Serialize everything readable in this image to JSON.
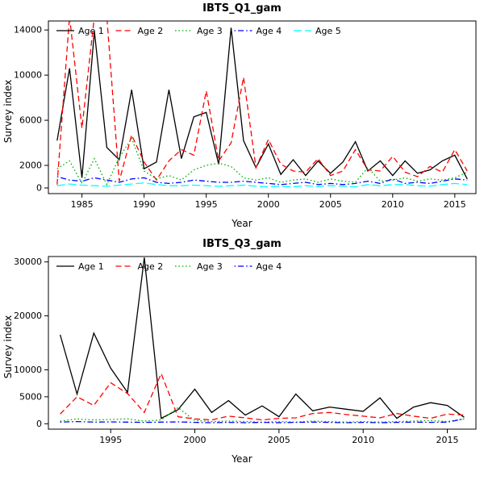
{
  "chart_data": [
    {
      "type": "line",
      "title": "IBTS_Q1_gam",
      "xlabel": "Year",
      "ylabel": "Survey index",
      "grid": false,
      "legend_position": "top-left-horizontal",
      "xlim": [
        1982.3,
        2016.7
      ],
      "ylim": [
        -500,
        14800
      ],
      "xticks": [
        1985,
        1990,
        1995,
        2000,
        2005,
        2010,
        2015
      ],
      "yticks": [
        0,
        2000,
        6000,
        10000,
        14000
      ],
      "x": [
        1983,
        1984,
        1985,
        1986,
        1987,
        1988,
        1989,
        1990,
        1991,
        1992,
        1993,
        1994,
        1995,
        1996,
        1997,
        1998,
        1999,
        2000,
        2001,
        2002,
        2003,
        2004,
        2005,
        2006,
        2007,
        2008,
        2009,
        2010,
        2011,
        2012,
        2013,
        2014,
        2015,
        2016
      ],
      "series": [
        {
          "name": "Age 1",
          "color": "#000000",
          "linestyle": "solid",
          "values": [
            4200,
            10600,
            900,
            13900,
            3600,
            2500,
            8700,
            1700,
            2300,
            8700,
            2600,
            6300,
            6700,
            2100,
            14200,
            4200,
            1800,
            3900,
            1200,
            2500,
            1100,
            2400,
            1300,
            2300,
            4100,
            1500,
            2400,
            1100,
            2400,
            1300,
            1600,
            2400,
            2900,
            800
          ]
        },
        {
          "name": "Age 2",
          "color": "#ff0000",
          "linestyle": "dashed",
          "values": [
            300,
            15200,
            5300,
            15200,
            15200,
            600,
            4700,
            2300,
            700,
            2400,
            3400,
            2900,
            8600,
            2400,
            4000,
            9800,
            1800,
            4300,
            2100,
            1500,
            1400,
            2600,
            1100,
            1500,
            3400,
            1600,
            1500,
            2800,
            1400,
            1000,
            1900,
            1400,
            3400,
            1500
          ]
        },
        {
          "name": "Age 3",
          "color": "#00b400",
          "linestyle": "dotted",
          "values": [
            1700,
            2400,
            400,
            2600,
            300,
            2700,
            4400,
            1500,
            800,
            1100,
            700,
            1600,
            2000,
            2200,
            1900,
            900,
            700,
            900,
            500,
            700,
            800,
            500,
            800,
            600,
            500,
            1800,
            600,
            700,
            900,
            600,
            800,
            700,
            900,
            1400
          ]
        },
        {
          "name": "Age 4",
          "color": "#0000ff",
          "linestyle": "dotdash",
          "values": [
            1000,
            700,
            600,
            900,
            700,
            500,
            800,
            900,
            500,
            400,
            500,
            700,
            600,
            500,
            500,
            600,
            500,
            400,
            300,
            400,
            500,
            300,
            400,
            300,
            400,
            600,
            400,
            800,
            400,
            500,
            400,
            600,
            800,
            700
          ]
        },
        {
          "name": "Age 5",
          "color": "#00ffff",
          "linestyle": "longdash",
          "values": [
            200,
            350,
            250,
            200,
            150,
            250,
            350,
            450,
            300,
            200,
            200,
            250,
            200,
            150,
            200,
            250,
            150,
            100,
            150,
            100,
            200,
            120,
            200,
            150,
            100,
            300,
            200,
            300,
            300,
            200,
            150,
            300,
            400,
            300
          ]
        }
      ]
    },
    {
      "type": "line",
      "title": "IBTS_Q3_gam",
      "xlabel": "Year",
      "ylabel": "Survey index",
      "grid": false,
      "legend_position": "top-left-horizontal",
      "xlim": [
        1991.3,
        2016.7
      ],
      "ylim": [
        -1000,
        31000
      ],
      "xticks": [
        1995,
        2000,
        2005,
        2010,
        2015
      ],
      "yticks": [
        0,
        5000,
        10000,
        20000,
        30000
      ],
      "x": [
        1992,
        1993,
        1994,
        1995,
        1996,
        1997,
        1998,
        1999,
        2000,
        2001,
        2002,
        2003,
        2004,
        2005,
        2006,
        2007,
        2008,
        2009,
        2010,
        2011,
        2012,
        2013,
        2014,
        2015,
        2016
      ],
      "series": [
        {
          "name": "Age 1",
          "color": "#000000",
          "linestyle": "solid",
          "values": [
            16500,
            5500,
            16800,
            10300,
            5800,
            30800,
            1000,
            2600,
            6400,
            2100,
            4300,
            1600,
            3300,
            1300,
            5500,
            2400,
            3100,
            2700,
            2300,
            4800,
            1000,
            3100,
            3900,
            3400,
            1200
          ]
        },
        {
          "name": "Age 2",
          "color": "#ff0000",
          "linestyle": "dashed",
          "values": [
            1800,
            5000,
            3400,
            7600,
            5600,
            2100,
            9300,
            1300,
            900,
            700,
            1400,
            1100,
            700,
            1000,
            1100,
            1900,
            2100,
            1700,
            1400,
            1100,
            1900,
            1400,
            1000,
            1800,
            1600
          ]
        },
        {
          "name": "Age 3",
          "color": "#00b400",
          "linestyle": "dotted",
          "values": [
            500,
            900,
            700,
            800,
            900,
            500,
            700,
            3000,
            600,
            400,
            500,
            400,
            300,
            400,
            300,
            500,
            400,
            300,
            400,
            300,
            400,
            500,
            600,
            400,
            900
          ]
        },
        {
          "name": "Age 4",
          "color": "#0000ff",
          "linestyle": "dotdash",
          "values": [
            300,
            400,
            300,
            350,
            300,
            250,
            300,
            350,
            250,
            200,
            250,
            200,
            250,
            200,
            250,
            300,
            250,
            200,
            250,
            200,
            250,
            300,
            250,
            300,
            900
          ]
        }
      ]
    }
  ]
}
